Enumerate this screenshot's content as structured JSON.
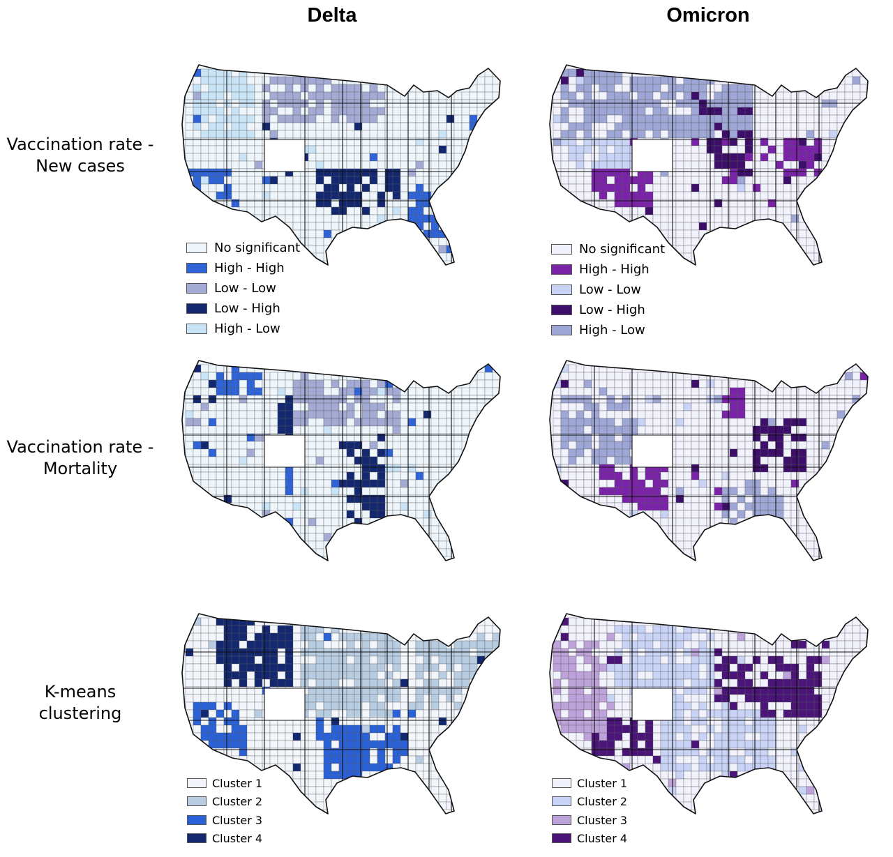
{
  "columns": {
    "delta": "Delta",
    "omicron": "Omicron"
  },
  "rows": [
    {
      "line1": "Vaccination rate -",
      "line2": "New cases"
    },
    {
      "line1": "Vaccination rate -",
      "line2": "Mortality"
    },
    {
      "line1": "K-means",
      "line2": "clustering"
    }
  ],
  "legends": {
    "delta_lisa": [
      {
        "label": "No significant",
        "color": "#eef6fb"
      },
      {
        "label": "High - High",
        "color": "#2f63d6"
      },
      {
        "label": "Low - Low",
        "color": "#a3abd4"
      },
      {
        "label": "Low - High",
        "color": "#13286e"
      },
      {
        "label": "High - Low",
        "color": "#c9e4f6"
      }
    ],
    "omicron_lisa": [
      {
        "label": "No significant",
        "color": "#f1f2fb"
      },
      {
        "label": "High - High",
        "color": "#7a22a8"
      },
      {
        "label": "Low - Low",
        "color": "#c8d3f5"
      },
      {
        "label": "Low - High",
        "color": "#3d0f6a"
      },
      {
        "label": "High - Low",
        "color": "#9fa7d6"
      }
    ],
    "delta_kmeans": [
      {
        "label": "Cluster 1",
        "color": "#f2f6fb"
      },
      {
        "label": "Cluster 2",
        "color": "#b9cde2"
      },
      {
        "label": "Cluster 3",
        "color": "#2a61d6"
      },
      {
        "label": "Cluster 4",
        "color": "#13286e"
      }
    ],
    "omicron_kmeans": [
      {
        "label": "Cluster 1",
        "color": "#f1f2fb"
      },
      {
        "label": "Cluster 2",
        "color": "#c8d3f5"
      },
      {
        "label": "Cluster 3",
        "color": "#bea2da"
      },
      {
        "label": "Cluster 4",
        "color": "#4a1478"
      }
    ]
  },
  "map_colors": {
    "outline": "#111111",
    "county_border": "#5a5a5a"
  }
}
